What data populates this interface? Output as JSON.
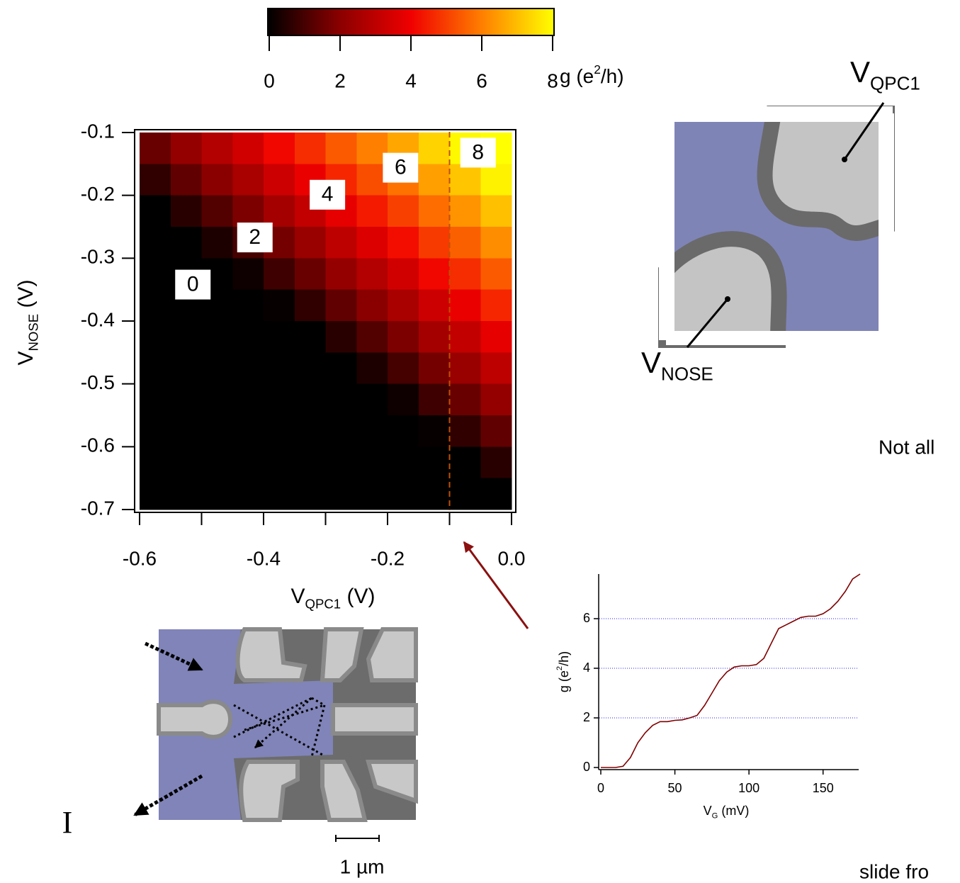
{
  "chart_data": [
    {
      "type": "heatmap",
      "x_title": {
        "main": "V",
        "sub": "QPC1",
        "rest": " (V)"
      },
      "y_title": {
        "main": "V",
        "sub": "NOSE",
        "rest": " (V)"
      },
      "x": [
        -0.575,
        -0.525,
        -0.475,
        -0.425,
        -0.375,
        -0.325,
        -0.275,
        -0.225,
        -0.175,
        -0.125,
        -0.075,
        -0.025
      ],
      "y": [
        -0.125,
        -0.175,
        -0.225,
        -0.275,
        -0.325,
        -0.375,
        -0.425,
        -0.475,
        -0.525,
        -0.575,
        -0.625,
        -0.675
      ],
      "z": [
        [
          1.5,
          2.2,
          2.8,
          3.4,
          4.1,
          4.7,
          5.4,
          6.0,
          6.6,
          7.3,
          7.9,
          8.0
        ],
        [
          0.7,
          1.4,
          2.0,
          2.6,
          3.3,
          3.9,
          4.6,
          5.2,
          5.8,
          6.5,
          7.1,
          7.8
        ],
        [
          0,
          0.6,
          1.2,
          1.8,
          2.5,
          3.1,
          3.8,
          4.4,
          5.0,
          5.7,
          6.3,
          7.0
        ],
        [
          0,
          0,
          0.4,
          1.0,
          1.7,
          2.3,
          3.0,
          3.6,
          4.2,
          4.9,
          5.5,
          6.2
        ],
        [
          0,
          0,
          0,
          0.2,
          0.9,
          1.5,
          2.2,
          2.8,
          3.4,
          4.1,
          4.7,
          5.4
        ],
        [
          0,
          0,
          0,
          0,
          0.1,
          0.7,
          1.4,
          2.0,
          2.6,
          3.3,
          3.9,
          4.6
        ],
        [
          0,
          0,
          0,
          0,
          0,
          0,
          0.6,
          1.2,
          1.8,
          2.5,
          3.1,
          3.8
        ],
        [
          0,
          0,
          0,
          0,
          0,
          0,
          0,
          0.4,
          1.0,
          1.7,
          2.3,
          3.0
        ],
        [
          0,
          0,
          0,
          0,
          0,
          0,
          0,
          0,
          0.2,
          0.9,
          1.5,
          2.2
        ],
        [
          0,
          0,
          0,
          0,
          0,
          0,
          0,
          0,
          0,
          0.1,
          0.7,
          1.4
        ],
        [
          0,
          0,
          0,
          0,
          0,
          0,
          0,
          0,
          0,
          0,
          0,
          0.6
        ],
        [
          0,
          0,
          0,
          0,
          0,
          0,
          0,
          0,
          0,
          0,
          0,
          0
        ]
      ],
      "xlim": [
        -0.6,
        0.0
      ],
      "ylim": [
        -0.7,
        -0.1
      ],
      "xticks": [
        -0.6,
        -0.4,
        -0.2,
        {
          "value": 0,
          "label": "0.0"
        }
      ],
      "xminorticks": [
        -0.5,
        -0.3,
        -0.1
      ],
      "yticks": [
        -0.1,
        -0.2,
        -0.3,
        -0.4,
        -0.5,
        -0.6,
        -0.7
      ],
      "zlim": [
        0,
        8
      ],
      "colormap": [
        "#000000",
        "#8a0000",
        "#f00000",
        "#ff8000",
        "#ffff00"
      ],
      "colorbar_ticks": [
        0,
        2,
        4,
        6,
        8
      ],
      "colorbar_label": {
        "pre": "g (e",
        "sup": "2",
        "post": "/h)"
      },
      "annotations": [
        {
          "text": "0",
          "x": -0.514,
          "y": -0.342
        },
        {
          "text": "2",
          "x": -0.414,
          "y": -0.267
        },
        {
          "text": "4",
          "x": -0.297,
          "y": -0.199
        },
        {
          "text": "6",
          "x": -0.179,
          "y": -0.156
        },
        {
          "text": "8",
          "x": -0.054,
          "y": -0.132
        }
      ],
      "vline": -0.1,
      "vline_color": "#c05000"
    },
    {
      "type": "line",
      "x_title": {
        "main": "V",
        "sub": "G",
        "rest": " (mV)"
      },
      "y_title": {
        "pre": "g (e",
        "sup": "2",
        "post": "/h)"
      },
      "x": [
        0,
        5,
        10,
        15,
        20,
        25,
        30,
        35,
        40,
        45,
        50,
        55,
        60,
        65,
        70,
        75,
        80,
        85,
        90,
        95,
        100,
        105,
        110,
        115,
        120,
        125,
        130,
        135,
        140,
        145,
        150,
        155,
        160,
        165,
        170,
        175
      ],
      "values": [
        0,
        0,
        0,
        0.05,
        0.4,
        1.0,
        1.4,
        1.7,
        1.85,
        1.85,
        1.9,
        1.92,
        2.0,
        2.1,
        2.5,
        3.0,
        3.5,
        3.85,
        4.05,
        4.1,
        4.1,
        4.15,
        4.4,
        5.0,
        5.6,
        5.75,
        5.9,
        6.05,
        6.1,
        6.1,
        6.2,
        6.4,
        6.7,
        7.1,
        7.6,
        7.8
      ],
      "color": "#800000",
      "xlim": [
        0,
        175
      ],
      "ylim": [
        0,
        7.8
      ],
      "xticks": [
        0,
        50,
        100,
        150
      ],
      "yticks": [
        0,
        2,
        4,
        6
      ],
      "grid_lines": [
        2,
        4,
        6
      ],
      "grid_color": "#2020ff"
    }
  ],
  "labels": {
    "qpc1": {
      "main": "V",
      "sub": "QPC1"
    },
    "nose": {
      "main": "V",
      "sub": "NOSE"
    },
    "not_all": "Not all",
    "roman": "I",
    "scale_bar": "1 µm",
    "slide": "slide fro"
  }
}
